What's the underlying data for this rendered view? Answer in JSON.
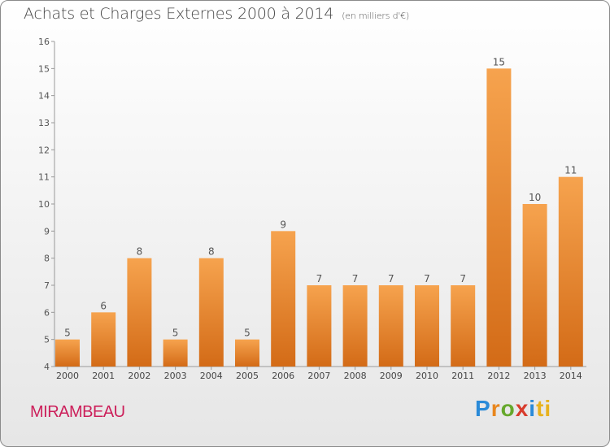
{
  "header": {
    "title": "Achats et Charges Externes 2000 à 2014",
    "unit": "(en milliers d'€)"
  },
  "footer": {
    "place": "MIRAMBEAU",
    "logo": [
      "P",
      "r",
      "o",
      "x",
      "i",
      "ti"
    ]
  },
  "colors": {
    "bar_top": "#f6a34e",
    "bar_bottom": "#d36b17",
    "place": "#cc1f5a"
  },
  "chart_data": {
    "type": "bar",
    "title": "Achats et Charges Externes 2000 à 2014",
    "categories": [
      "2000",
      "2001",
      "2002",
      "2003",
      "2004",
      "2005",
      "2006",
      "2007",
      "2008",
      "2009",
      "2010",
      "2011",
      "2012",
      "2013",
      "2014"
    ],
    "values": [
      5,
      6,
      8,
      5,
      8,
      5,
      9,
      7,
      7,
      7,
      7,
      7,
      15,
      10,
      11
    ],
    "ylim": [
      4,
      16
    ],
    "yticks": [
      4,
      5,
      6,
      7,
      8,
      9,
      10,
      11,
      12,
      13,
      14,
      15,
      16
    ],
    "grid": false,
    "xlabel": "",
    "ylabel": ""
  }
}
